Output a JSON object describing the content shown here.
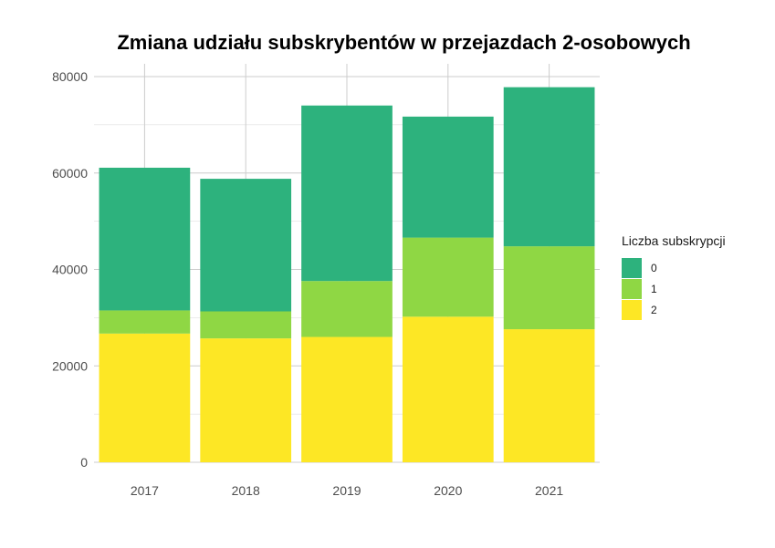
{
  "chart_data": {
    "type": "bar",
    "stacked": true,
    "title": "Zmiana udziału subskrybentów w przejazdach 2-osobowych",
    "xlabel": "",
    "ylabel": "",
    "categories": [
      "2017",
      "2018",
      "2019",
      "2020",
      "2021"
    ],
    "ylim": [
      0,
      80000
    ],
    "yticks": [
      0,
      20000,
      40000,
      60000,
      80000
    ],
    "ytick_labels": [
      "0",
      "20000",
      "40000",
      "60000",
      "80000"
    ],
    "grid": true,
    "legend": {
      "title": "Liczba subskrypcji",
      "position": "right"
    },
    "series": [
      {
        "name": "2",
        "color": "#FDE725",
        "values": [
          26700,
          25700,
          26000,
          30200,
          27600
        ]
      },
      {
        "name": "1",
        "color": "#8FD744",
        "values": [
          4800,
          5600,
          11600,
          16400,
          17200
        ]
      },
      {
        "name": "0",
        "color": "#2DB27D",
        "values": [
          29600,
          27500,
          36400,
          25100,
          33000
        ]
      }
    ]
  }
}
